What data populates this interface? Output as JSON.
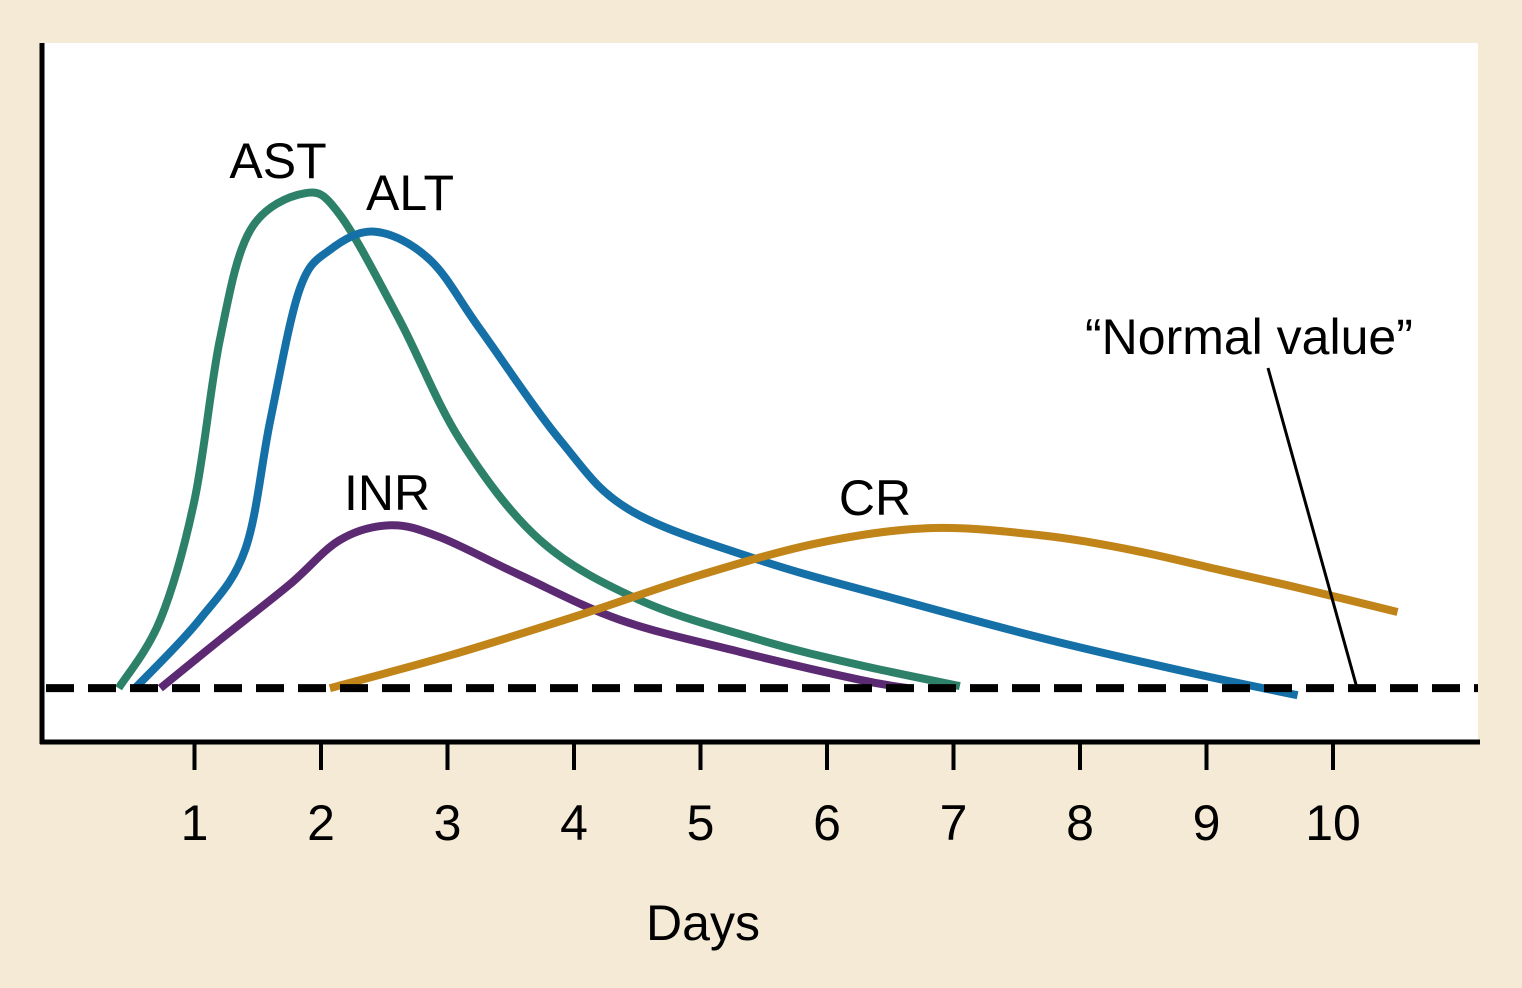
{
  "chart_data": {
    "type": "line",
    "title": "",
    "xlabel": "Days",
    "ylabel": "",
    "xlim": [
      0,
      11.4
    ],
    "ylim": [
      0,
      100
    ],
    "x_ticks": [
      1,
      2,
      3,
      4,
      5,
      6,
      7,
      8,
      9,
      10
    ],
    "y_ticks": [],
    "grid": false,
    "background": "#f5ead5",
    "normal_value": {
      "label": "“Normal value”",
      "y": 7.7,
      "style": "dashed",
      "color": "#000000"
    },
    "series": [
      {
        "name": "AST",
        "color": "#2e8169",
        "x": [
          0.4,
          0.73,
          1.0,
          1.2,
          1.44,
          1.87,
          2.15,
          2.62,
          3.1,
          3.73,
          4.52,
          5.47,
          6.26,
          7.05
        ],
        "y": [
          7.7,
          17.5,
          34.6,
          57.5,
          73.2,
          78.5,
          75.4,
          60.4,
          43.2,
          28.9,
          20.3,
          14.6,
          11.0,
          8.0
        ]
      },
      {
        "name": "ALT",
        "color": "#1570a8",
        "x": [
          0.53,
          1.04,
          1.4,
          1.6,
          1.83,
          2.07,
          2.43,
          2.86,
          3.26,
          3.89,
          4.44,
          5.47,
          6.58,
          7.76,
          8.95,
          9.72
        ],
        "y": [
          7.7,
          17.5,
          27.5,
          46.1,
          64.7,
          70.4,
          73.0,
          69.0,
          59.0,
          43.2,
          33.2,
          26.0,
          20.3,
          14.6,
          9.6,
          6.7
        ]
      },
      {
        "name": "INR",
        "color": "#5c2a72",
        "x": [
          0.73,
          1.2,
          1.75,
          2.15,
          2.55,
          2.94,
          3.57,
          4.36,
          5.31,
          6.26,
          6.64
        ],
        "y": [
          7.7,
          14.6,
          22.5,
          28.9,
          31.0,
          29.3,
          23.9,
          17.5,
          12.9,
          8.9,
          7.7
        ]
      },
      {
        "name": "CR",
        "color": "#c08418",
        "x": [
          2.07,
          3.02,
          4.05,
          5.0,
          5.94,
          6.81,
          7.68,
          8.4,
          9.11,
          9.74,
          10.51
        ],
        "y": [
          7.7,
          12.4,
          18.2,
          23.9,
          28.5,
          30.6,
          29.6,
          27.5,
          24.6,
          22.0,
          18.6
        ]
      }
    ]
  }
}
